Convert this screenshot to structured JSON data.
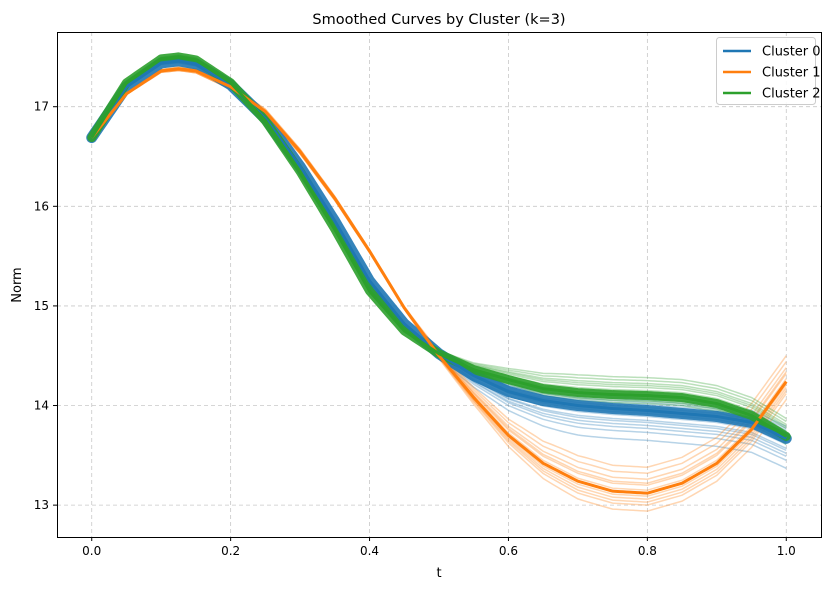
{
  "chart_data": {
    "type": "line",
    "title": "Smoothed Curves by Cluster (k=3)",
    "xlabel": "t",
    "ylabel": "Norm",
    "xlim": [
      -0.05,
      1.05
    ],
    "ylim": [
      12.68,
      17.75
    ],
    "xticks": [
      0.0,
      0.2,
      0.4,
      0.6,
      0.8,
      1.0
    ],
    "xtick_labels": [
      "0.0",
      "0.2",
      "0.4",
      "0.6",
      "0.8",
      "1.0"
    ],
    "yticks": [
      13,
      14,
      15,
      16,
      17
    ],
    "ytick_labels": [
      "13",
      "14",
      "15",
      "16",
      "17"
    ],
    "grid": true,
    "legend_position": "top-right",
    "x": [
      0.0,
      0.05,
      0.1,
      0.125,
      0.15,
      0.2,
      0.25,
      0.3,
      0.35,
      0.4,
      0.45,
      0.5,
      0.55,
      0.6,
      0.65,
      0.7,
      0.75,
      0.8,
      0.85,
      0.9,
      0.95,
      1.0
    ],
    "series": [
      {
        "name": "Cluster 0",
        "color": "#1f77b4",
        "mean": [
          16.69,
          17.2,
          17.44,
          17.46,
          17.43,
          17.22,
          16.88,
          16.4,
          15.85,
          15.25,
          14.82,
          14.52,
          14.3,
          14.14,
          14.05,
          14.0,
          13.97,
          13.95,
          13.92,
          13.89,
          13.83,
          13.67
        ],
        "individual_offsets": [
          -0.3,
          -0.22,
          -0.15,
          -0.1,
          -0.06,
          -0.03,
          0.0,
          0.03,
          0.06,
          0.1,
          -0.18,
          -0.12,
          0.08,
          0.12
        ]
      },
      {
        "name": "Cluster 1",
        "color": "#ff7f0e",
        "mean": [
          16.69,
          17.13,
          17.36,
          17.38,
          17.36,
          17.2,
          16.95,
          16.55,
          16.08,
          15.55,
          14.98,
          14.5,
          14.08,
          13.7,
          13.42,
          13.24,
          13.14,
          13.12,
          13.22,
          13.42,
          13.76,
          14.24
        ],
        "individual_offsets": [
          -0.18,
          -0.12,
          -0.06,
          -0.03,
          0.0,
          0.03,
          0.08,
          0.14,
          0.2,
          0.26,
          0.1,
          -0.09
        ]
      },
      {
        "name": "Cluster 2",
        "color": "#2ca02c",
        "mean": [
          16.69,
          17.24,
          17.48,
          17.5,
          17.47,
          17.24,
          16.86,
          16.35,
          15.77,
          15.15,
          14.75,
          14.52,
          14.36,
          14.26,
          14.17,
          14.13,
          14.11,
          14.1,
          14.08,
          14.02,
          13.9,
          13.69
        ],
        "individual_offsets": [
          -0.08,
          -0.05,
          -0.03,
          0.0,
          0.03,
          0.05,
          0.08,
          0.12,
          0.15,
          0.18,
          -0.06,
          0.1
        ]
      }
    ]
  }
}
